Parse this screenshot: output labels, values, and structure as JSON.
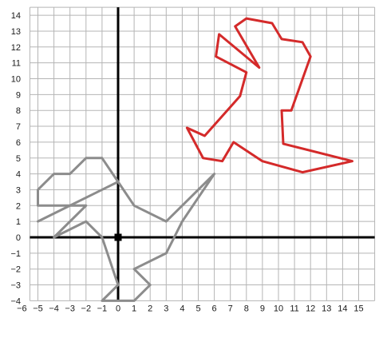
{
  "chart_data": {
    "type": "scatter",
    "title": "",
    "xlabel": "",
    "ylabel": "",
    "xlim": [
      -6,
      16
    ],
    "ylim": [
      -4,
      14.5
    ],
    "grid": true,
    "x_ticks": [
      "−6",
      "−5",
      "−4",
      "−3",
      "−2",
      "−1",
      "0",
      "1",
      "2",
      "3",
      "4",
      "5",
      "6",
      "7",
      "8",
      "9",
      "10",
      "11",
      "12",
      "13",
      "14",
      "15"
    ],
    "y_ticks": [
      "−4",
      "−3",
      "−2",
      "−1",
      "0",
      "1",
      "2",
      "3",
      "4",
      "5",
      "6",
      "7",
      "8",
      "9",
      "10",
      "11",
      "12",
      "13",
      "14"
    ],
    "origin_marker": true,
    "series": [
      {
        "color": "#8c8c8c",
        "closed": true,
        "points": [
          [
            -5,
            3
          ],
          [
            -4,
            4
          ],
          [
            -3,
            4
          ],
          [
            -2,
            5
          ],
          [
            -1,
            5
          ],
          [
            0,
            3.5
          ],
          [
            1,
            2
          ],
          [
            3,
            1
          ],
          [
            6,
            4
          ],
          [
            4,
            1
          ],
          [
            3,
            -1
          ],
          [
            1,
            -2
          ],
          [
            2,
            -3
          ],
          [
            1,
            -4
          ],
          [
            -1,
            -4
          ],
          [
            0,
            -3
          ],
          [
            -1,
            0
          ],
          [
            -2,
            1
          ],
          [
            -4,
            0
          ],
          [
            -2,
            2
          ],
          [
            -5,
            2
          ]
        ]
      },
      {
        "color": "#8c8c8c",
        "closed": false,
        "points": [
          [
            -5,
            1
          ],
          [
            0,
            3.5
          ]
        ]
      },
      {
        "color": "#d42a2a",
        "closed": true,
        "points": [
          [
            7.3,
            13.3
          ],
          [
            8.0,
            13.8
          ],
          [
            9.6,
            13.5
          ],
          [
            10.2,
            12.5
          ],
          [
            11.5,
            12.3
          ],
          [
            12.0,
            11.4
          ],
          [
            10.8,
            8.0
          ],
          [
            10.2,
            8.0
          ],
          [
            10.3,
            5.9
          ],
          [
            14.6,
            4.8
          ],
          [
            11.5,
            4.1
          ],
          [
            9.0,
            4.8
          ],
          [
            7.2,
            6.0
          ],
          [
            6.5,
            4.8
          ],
          [
            5.3,
            5.0
          ],
          [
            4.3,
            6.9
          ],
          [
            5.4,
            6.4
          ],
          [
            7.6,
            8.9
          ],
          [
            8.0,
            10.4
          ],
          [
            6.1,
            11.4
          ],
          [
            6.3,
            12.8
          ],
          [
            8.8,
            10.7
          ]
        ]
      }
    ]
  }
}
